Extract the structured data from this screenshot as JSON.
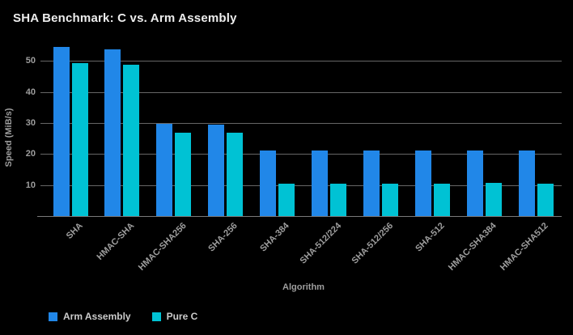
{
  "title": "SHA Benchmark: C vs. Arm Assembly",
  "colors": {
    "background": "#000000",
    "arm_assembly": "#2187e8",
    "pure_c": "#00c2d4",
    "gridline": "#666666",
    "tick_text": "#9e9e9e",
    "legend_text": "#cbcbcb",
    "title_text": "#ededed"
  },
  "chart_data": {
    "type": "bar",
    "title": "SHA Benchmark: C vs. Arm Assembly",
    "xlabel": "Algorithm",
    "ylabel": "Speed (MiB/s)",
    "ylim": [
      0,
      55
    ],
    "yticks": [
      10,
      20,
      30,
      40,
      50
    ],
    "grid": true,
    "legend_position": "bottom-left",
    "categories": [
      "SHA",
      "HMAC-SHA",
      "HMAC-SHA256",
      "SHA-256",
      "SHA-384",
      "SHA-512/224",
      "SHA-512/256",
      "SHA-512",
      "HMAC-SHA384",
      "HMAC-SHA512"
    ],
    "series": [
      {
        "name": "Arm Assembly",
        "color": "#2187e8",
        "values": [
          54.5,
          53.6,
          29.6,
          29.5,
          21.2,
          21.2,
          21.2,
          21.2,
          21.2,
          21.2
        ]
      },
      {
        "name": "Pure C",
        "color": "#00c2d4",
        "values": [
          49.3,
          48.8,
          26.9,
          26.8,
          10.5,
          10.5,
          10.5,
          10.5,
          10.6,
          10.5
        ]
      }
    ]
  }
}
